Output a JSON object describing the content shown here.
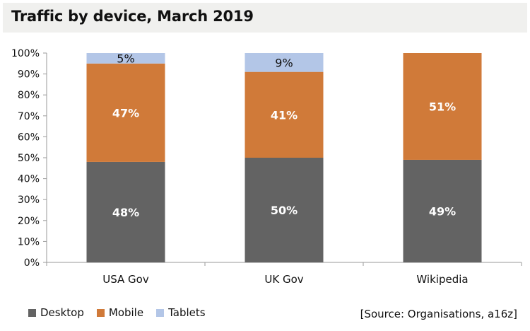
{
  "chart_data": {
    "type": "bar",
    "stacked": true,
    "title": "Traffic by device, March 2019",
    "categories": [
      "USA Gov",
      "UK Gov",
      "Wikipedia"
    ],
    "series": [
      {
        "name": "Desktop",
        "color": "#636363",
        "values": [
          48,
          50,
          49
        ],
        "labels": [
          "48%",
          "50%",
          "49%"
        ]
      },
      {
        "name": "Mobile",
        "color": "#d07a39",
        "values": [
          47,
          41,
          51
        ],
        "labels": [
          "47%",
          "41%",
          "51%"
        ]
      },
      {
        "name": "Tablets",
        "color": "#b3c6e7",
        "values": [
          5,
          9,
          0
        ],
        "labels": [
          "5%",
          "9%",
          ""
        ]
      }
    ],
    "ylim": [
      0,
      100
    ],
    "yticks": [
      "0%",
      "10%",
      "20%",
      "30%",
      "40%",
      "50%",
      "60%",
      "70%",
      "80%",
      "90%",
      "100%"
    ],
    "xlabel": "",
    "ylabel": "",
    "grid": false,
    "legend_position": "bottom-left",
    "source": "[Source: Organisations, a16z]"
  }
}
